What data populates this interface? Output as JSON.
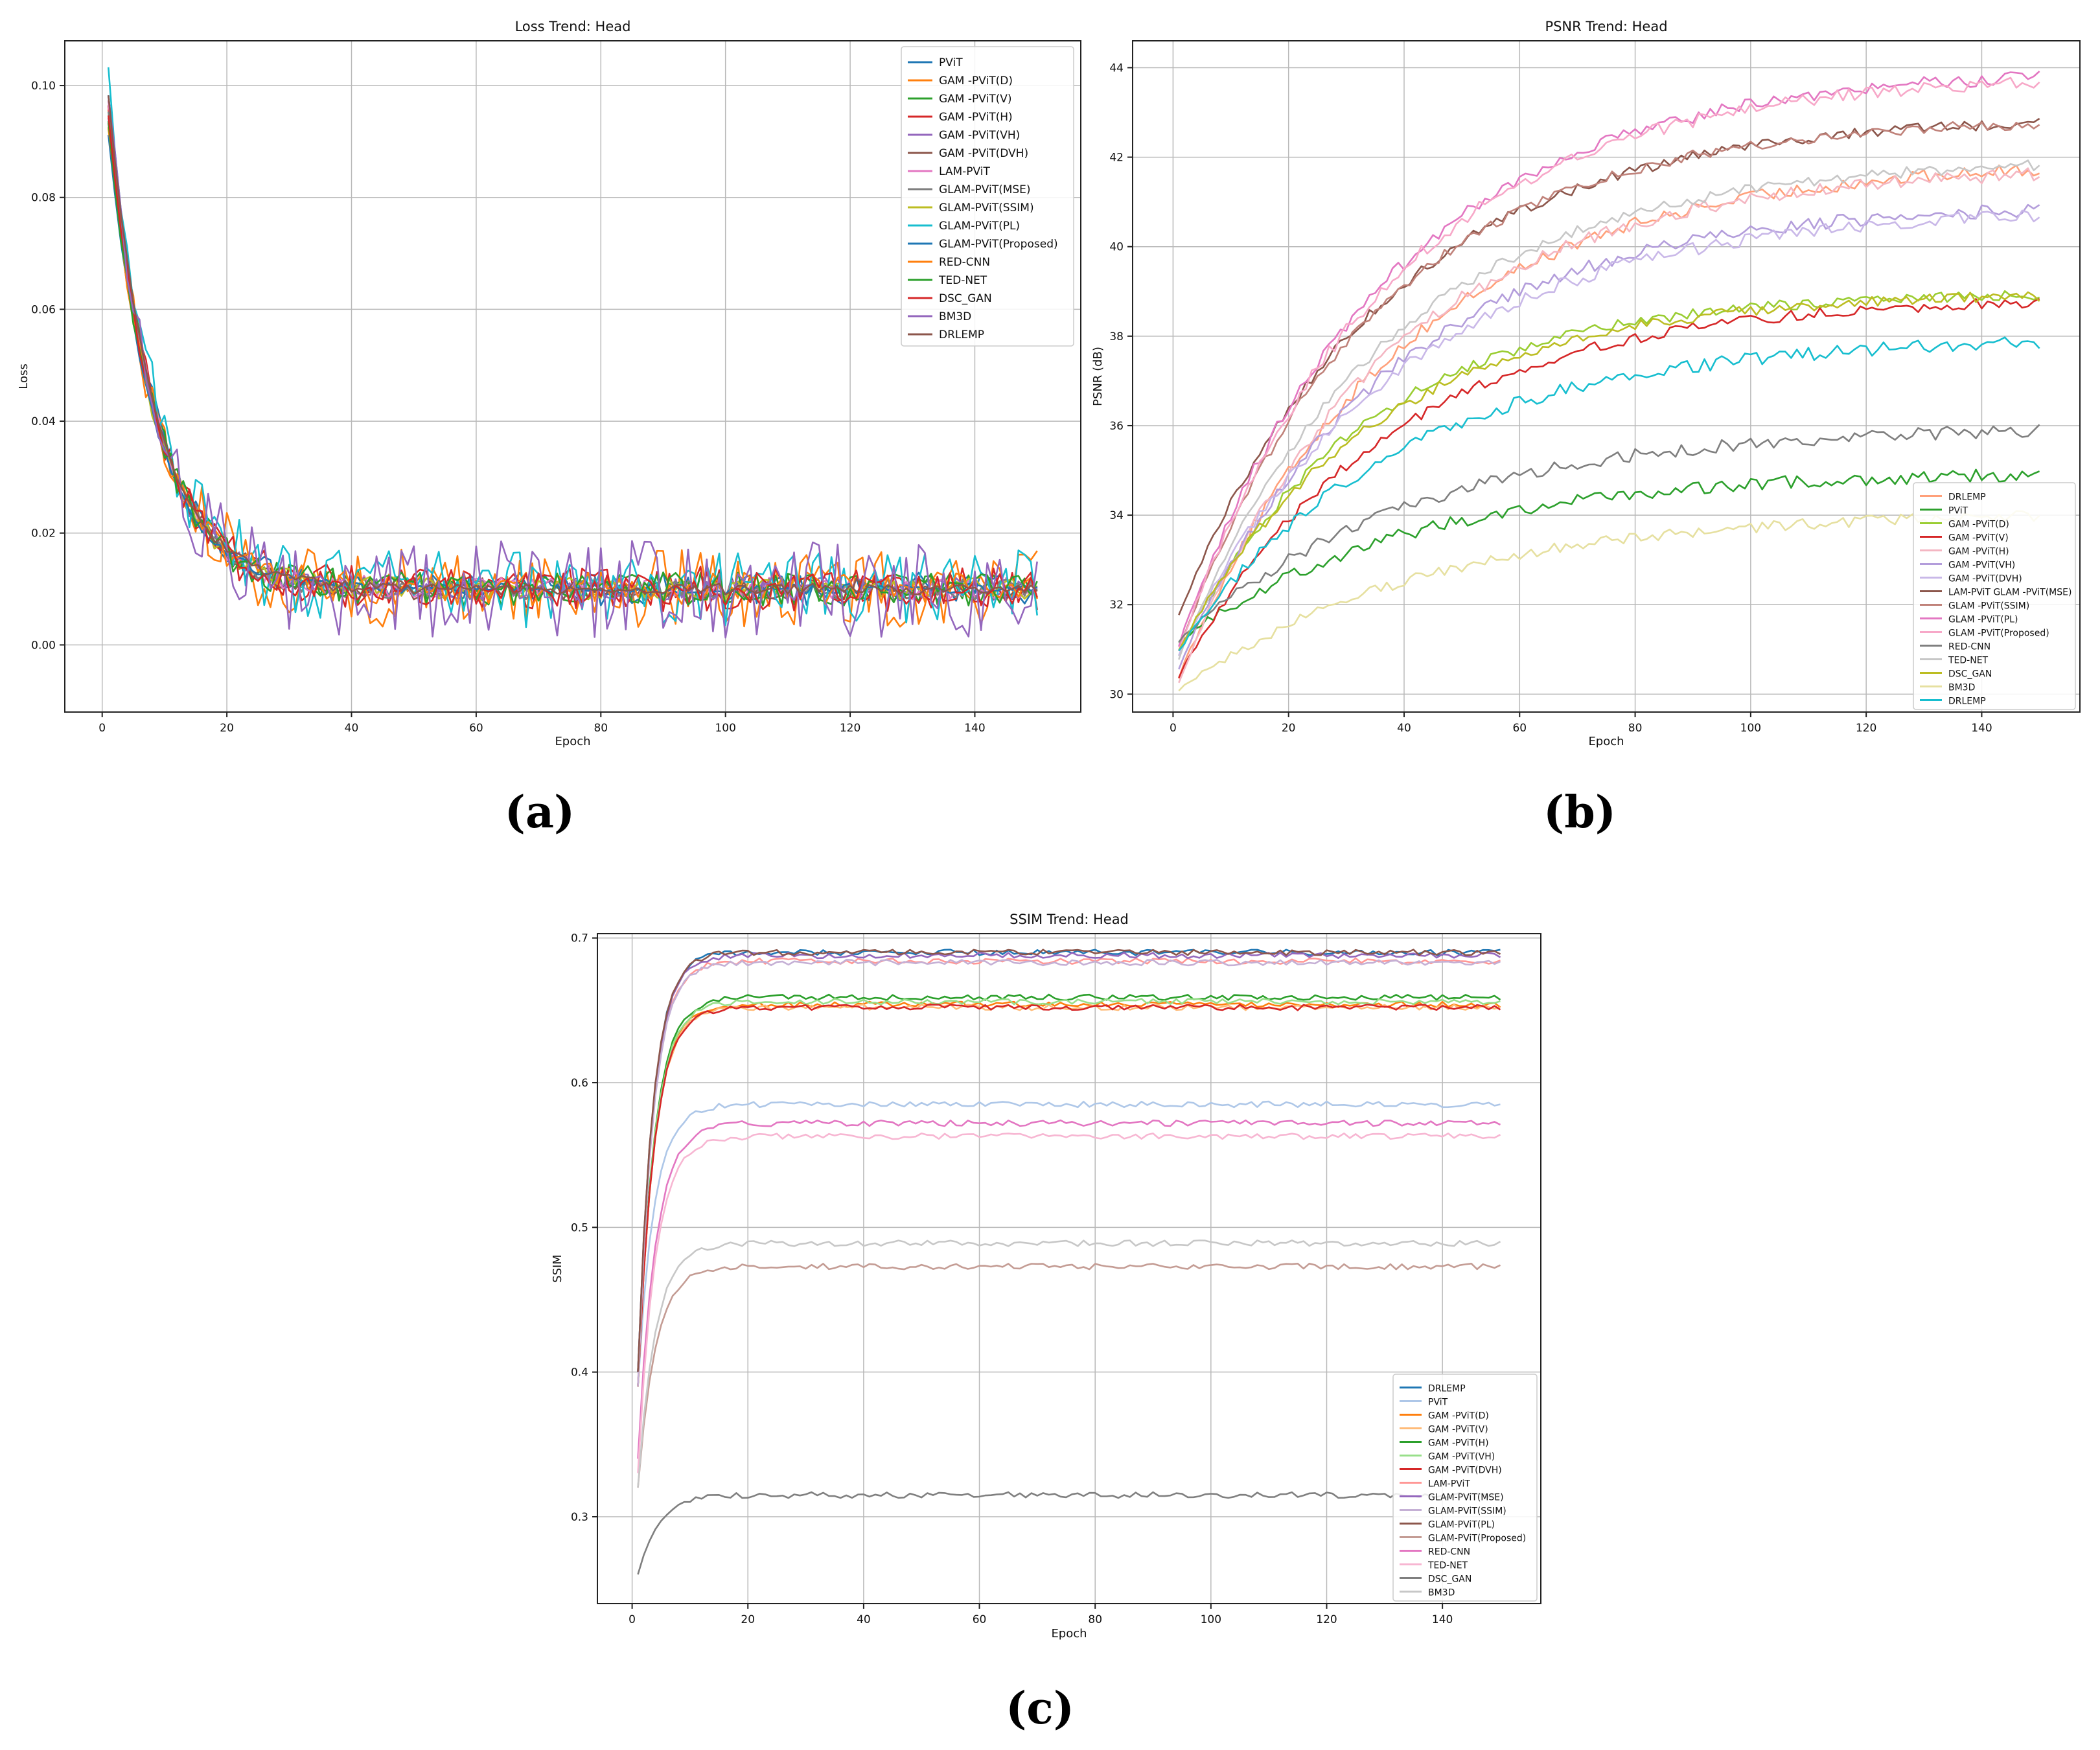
{
  "chart_data": [
    {
      "id": "a",
      "type": "line",
      "panel_label": "(a)",
      "title": "Loss Trend: Head",
      "xlabel": "Epoch",
      "ylabel": "Loss",
      "xlim": [
        -6,
        157
      ],
      "ylim": [
        -0.012,
        0.108
      ],
      "xticks": [
        0,
        20,
        40,
        60,
        80,
        100,
        120,
        140
      ],
      "yticks": [
        0.0,
        0.02,
        0.04,
        0.06,
        0.08,
        0.1
      ],
      "ytick_labels": [
        "0.00",
        "0.02",
        "0.04",
        "0.06",
        "0.08",
        "0.10"
      ],
      "grid": true,
      "legend_position": "top-right",
      "x_range": [
        1,
        150
      ],
      "series": [
        {
          "name": "PViT",
          "color": "#1f77b4",
          "start": 0.098,
          "end": 0.01,
          "rate": 7.5,
          "noise": 0.003
        },
        {
          "name": "GAM -PViT(D)",
          "color": "#ff7f0e",
          "start": 0.095,
          "end": 0.01,
          "rate": 7.5,
          "noise": 0.007
        },
        {
          "name": "GAM -PViT(V)",
          "color": "#2ca02c",
          "start": 0.097,
          "end": 0.01,
          "rate": 7.5,
          "noise": 0.003
        },
        {
          "name": "GAM -PViT(H)",
          "color": "#d62728",
          "start": 0.096,
          "end": 0.01,
          "rate": 7.5,
          "noise": 0.004
        },
        {
          "name": "GAM -PViT(VH)",
          "color": "#9467bd",
          "start": 0.094,
          "end": 0.01,
          "rate": 7.5,
          "noise": 0.002
        },
        {
          "name": "GAM -PViT(DVH)",
          "color": "#8c564b",
          "start": 0.093,
          "end": 0.01,
          "rate": 7.5,
          "noise": 0.002
        },
        {
          "name": "LAM-PViT",
          "color": "#e377c2",
          "start": 0.097,
          "end": 0.01,
          "rate": 7.5,
          "noise": 0.002
        },
        {
          "name": "GLAM-PViT(MSE)",
          "color": "#7f7f7f",
          "start": 0.095,
          "end": 0.01,
          "rate": 7.5,
          "noise": 0.002
        },
        {
          "name": "GLAM-PViT(SSIM)",
          "color": "#bcbd22",
          "start": 0.092,
          "end": 0.01,
          "rate": 7.5,
          "noise": 0.002
        },
        {
          "name": "GLAM-PViT(PL)",
          "color": "#17becf",
          "start": 0.102,
          "end": 0.01,
          "rate": 7.5,
          "noise": 0.007
        },
        {
          "name": "GLAM-PViT(Proposed)",
          "color": "#1f77b4",
          "start": 0.091,
          "end": 0.01,
          "rate": 7.5,
          "noise": 0.001
        },
        {
          "name": "RED-CNN",
          "color": "#ff7f0e",
          "start": 0.092,
          "end": 0.01,
          "rate": 7.5,
          "noise": 0.003
        },
        {
          "name": "TED-NET",
          "color": "#2ca02c",
          "start": 0.093,
          "end": 0.01,
          "rate": 7.5,
          "noise": 0.003
        },
        {
          "name": "DSC_GAN",
          "color": "#d62728",
          "start": 0.094,
          "end": 0.01,
          "rate": 7.5,
          "noise": 0.003
        },
        {
          "name": "BM3D",
          "color": "#9467bd",
          "start": 0.096,
          "end": 0.01,
          "rate": 7.5,
          "noise": 0.009
        },
        {
          "name": "DRLEMP",
          "color": "#8c564b",
          "start": 0.098,
          "end": 0.01,
          "rate": 7.5,
          "noise": 0.001
        }
      ]
    },
    {
      "id": "b",
      "type": "line",
      "panel_label": "(b)",
      "title": "PSNR Trend: Head",
      "xlabel": "Epoch",
      "ylabel": "PSNR (dB)",
      "xlim": [
        -7,
        157
      ],
      "ylim": [
        29.6,
        44.6
      ],
      "xticks": [
        0,
        20,
        40,
        60,
        80,
        100,
        120,
        140
      ],
      "yticks": [
        30,
        32,
        34,
        36,
        38,
        40,
        42,
        44
      ],
      "ytick_labels": [
        "30",
        "32",
        "34",
        "36",
        "38",
        "40",
        "42",
        "44"
      ],
      "grid": true,
      "legend_position": "bottom-right",
      "x_range": [
        1,
        150
      ],
      "series": [
        {
          "name": "DRLEMP",
          "color": "#ffa07a",
          "start": 30.4,
          "end": 41.95,
          "rate": 38,
          "noise": 0.15
        },
        {
          "name": "PViT",
          "color": "#2ca02c",
          "start": 31.2,
          "end": 35.0,
          "rate": 40,
          "noise": 0.15
        },
        {
          "name": "GAM -PViT(D)",
          "color": "#9acd32",
          "start": 30.9,
          "end": 39.0,
          "rate": 32,
          "noise": 0.12
        },
        {
          "name": "GAM -PViT(V)",
          "color": "#d62728",
          "start": 30.4,
          "end": 38.9,
          "rate": 36,
          "noise": 0.12
        },
        {
          "name": "GAM -PViT(H)",
          "color": "#f4b6c2",
          "start": 30.3,
          "end": 41.8,
          "rate": 36,
          "noise": 0.15
        },
        {
          "name": "GAM -PViT(VH)",
          "color": "#b39ddb",
          "start": 30.6,
          "end": 41.0,
          "rate": 36,
          "noise": 0.15
        },
        {
          "name": "GAM -PViT(DVH)",
          "color": "#c9b8e8",
          "start": 30.9,
          "end": 40.9,
          "rate": 38,
          "noise": 0.15
        },
        {
          "name": "LAM-PViT GLAM -PViT(MSE)",
          "color": "#8c564b",
          "start": 31.8,
          "end": 42.95,
          "rate": 36,
          "noise": 0.12
        },
        {
          "name": "GLAM -PViT(SSIM)",
          "color": "#c0827a",
          "start": 31.0,
          "end": 42.9,
          "rate": 34,
          "noise": 0.12
        },
        {
          "name": "GLAM -PViT(PL)",
          "color": "#e377c2",
          "start": 31.1,
          "end": 44.0,
          "rate": 36,
          "noise": 0.15
        },
        {
          "name": "GLAM -PViT(Proposed)",
          "color": "#f7a8c8",
          "start": 31.0,
          "end": 43.9,
          "rate": 36,
          "noise": 0.15
        },
        {
          "name": "RED-CNN",
          "color": "#7f7f7f",
          "start": 31.2,
          "end": 36.0,
          "rate": 40,
          "noise": 0.15
        },
        {
          "name": "TED-NET",
          "color": "#c7c7c7",
          "start": 30.8,
          "end": 42.0,
          "rate": 36,
          "noise": 0.12
        },
        {
          "name": "DSC_GAN",
          "color": "#bcbd22",
          "start": 31.0,
          "end": 39.0,
          "rate": 34,
          "noise": 0.12
        },
        {
          "name": "BM3D",
          "color": "#e6e0a0",
          "start": 30.1,
          "end": 34.1,
          "rate": 42,
          "noise": 0.12
        },
        {
          "name": "DRLEMP",
          "color": "#17becf",
          "start": 31.0,
          "end": 38.0,
          "rate": 38,
          "noise": 0.15
        }
      ]
    },
    {
      "id": "c",
      "type": "line",
      "panel_label": "(c)",
      "title": "SSIM Trend: Head",
      "xlabel": "Epoch",
      "ylabel": "SSIM",
      "xlim": [
        -6,
        157
      ],
      "ylim": [
        0.24,
        0.703
      ],
      "xticks": [
        0,
        20,
        40,
        60,
        80,
        100,
        120,
        140
      ],
      "yticks": [
        0.3,
        0.4,
        0.5,
        0.6,
        0.7
      ],
      "ytick_labels": [
        "0.3",
        "0.4",
        "0.5",
        "0.6",
        "0.7"
      ],
      "grid": true,
      "legend_position": "bottom-right",
      "x_range": [
        1,
        150
      ],
      "series": [
        {
          "name": "DRLEMP",
          "color": "#1f77b4",
          "start": 0.4,
          "end": 0.69,
          "rate": 2.6,
          "noise": 0.002
        },
        {
          "name": "PViT",
          "color": "#aec7e8",
          "start": 0.39,
          "end": 0.585,
          "rate": 2.8,
          "noise": 0.002
        },
        {
          "name": "GAM -PViT(D)",
          "color": "#ff7f0e",
          "start": 0.39,
          "end": 0.654,
          "rate": 2.8,
          "noise": 0.002
        },
        {
          "name": "GAM -PViT(V)",
          "color": "#ffbb78",
          "start": 0.39,
          "end": 0.652,
          "rate": 2.8,
          "noise": 0.002
        },
        {
          "name": "GAM -PViT(H)",
          "color": "#2ca02c",
          "start": 0.39,
          "end": 0.659,
          "rate": 2.8,
          "noise": 0.002
        },
        {
          "name": "GAM -PViT(VH)",
          "color": "#98df8a",
          "start": 0.39,
          "end": 0.656,
          "rate": 2.8,
          "noise": 0.002
        },
        {
          "name": "GAM -PViT(DVH)",
          "color": "#d62728",
          "start": 0.39,
          "end": 0.652,
          "rate": 2.8,
          "noise": 0.002
        },
        {
          "name": "LAM-PViT",
          "color": "#ff9896",
          "start": 0.39,
          "end": 0.684,
          "rate": 2.6,
          "noise": 0.002
        },
        {
          "name": "GLAM-PViT(MSE)",
          "color": "#9467bd",
          "start": 0.4,
          "end": 0.688,
          "rate": 2.6,
          "noise": 0.002
        },
        {
          "name": "GLAM-PViT(SSIM)",
          "color": "#c5b0d5",
          "start": 0.39,
          "end": 0.683,
          "rate": 2.6,
          "noise": 0.002
        },
        {
          "name": "GLAM-PViT(PL)",
          "color": "#8c564b",
          "start": 0.4,
          "end": 0.69,
          "rate": 2.6,
          "noise": 0.002
        },
        {
          "name": "GLAM-PViT(Proposed)",
          "color": "#c49c94",
          "start": 0.32,
          "end": 0.473,
          "rate": 3.0,
          "noise": 0.002
        },
        {
          "name": "RED-CNN",
          "color": "#e377c2",
          "start": 0.34,
          "end": 0.572,
          "rate": 3.0,
          "noise": 0.002
        },
        {
          "name": "TED-NET",
          "color": "#f7b6d2",
          "start": 0.33,
          "end": 0.563,
          "rate": 3.0,
          "noise": 0.002
        },
        {
          "name": "DSC_GAN",
          "color": "#7f7f7f",
          "start": 0.26,
          "end": 0.315,
          "rate": 3.5,
          "noise": 0.002
        },
        {
          "name": "BM3D",
          "color": "#c7c7c7",
          "start": 0.32,
          "end": 0.489,
          "rate": 3.0,
          "noise": 0.002
        }
      ]
    }
  ]
}
